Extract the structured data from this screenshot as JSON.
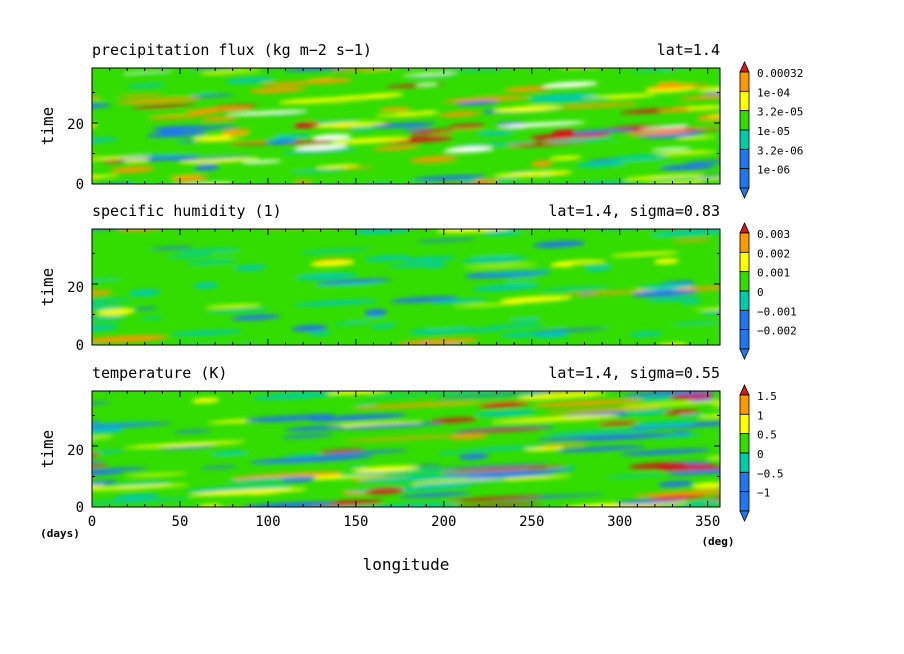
{
  "chart_data": [
    {
      "type": "heatmap",
      "title": "precipitation flux (kg m−2 s−1)",
      "tag": "lat=1.4",
      "ylabel": "time",
      "yticks": [
        "0",
        "20"
      ],
      "ylim": [
        0,
        38
      ],
      "xlim": [
        0,
        357
      ],
      "colorbar": {
        "labels": [
          "0.00032",
          "1e-04",
          "3.2e-05",
          "1e-05",
          "3.2e-06",
          "1e-06"
        ],
        "colors": [
          "#d7191c",
          "#ff9900",
          "#ffff00",
          "#33dd00",
          "#00ccaa",
          "#2277ee"
        ],
        "levels": [
          0.00032,
          0.0001,
          3.2e-05,
          1e-05,
          3.2e-06,
          1e-06
        ]
      },
      "note_color_white_below_min": "#ffffff"
    },
    {
      "type": "heatmap",
      "title": "specific humidity (1)",
      "tag": "lat=1.4, sigma=0.83",
      "ylabel": "time",
      "yticks": [
        "0",
        "20"
      ],
      "ylim": [
        0,
        38
      ],
      "xlim": [
        0,
        357
      ],
      "colorbar": {
        "labels": [
          "0.003",
          "0.002",
          "0.001",
          "0",
          "−0.001",
          "−0.002"
        ],
        "colors": [
          "#d7191c",
          "#ff9900",
          "#ffff00",
          "#33dd00",
          "#00ccaa",
          "#2277ee"
        ],
        "levels": [
          0.003,
          0.002,
          0.001,
          0,
          -0.001,
          -0.002
        ]
      }
    },
    {
      "type": "heatmap",
      "title": "temperature (K)",
      "tag": "lat=1.4, sigma=0.55",
      "ylabel": "time",
      "yticks": [
        "0",
        "20"
      ],
      "ylim": [
        0,
        38
      ],
      "xlim": [
        0,
        357
      ],
      "colorbar": {
        "labels": [
          "1.5",
          "1",
          "0.5",
          "0",
          "−0.5",
          "−1"
        ],
        "colors": [
          "#d7191c",
          "#ff9900",
          "#ffff00",
          "#33dd00",
          "#00ccaa",
          "#2277ee"
        ],
        "levels": [
          1.5,
          1,
          0.5,
          0,
          -0.5,
          -1
        ]
      }
    }
  ],
  "xaxis": {
    "label": "longitude",
    "ticks": [
      "0",
      "50",
      "100",
      "150",
      "200",
      "250",
      "300",
      "350"
    ],
    "tick_values": [
      0,
      50,
      100,
      150,
      200,
      250,
      300,
      350
    ],
    "unit": "(deg)"
  },
  "yaxis_unit": "(days)"
}
